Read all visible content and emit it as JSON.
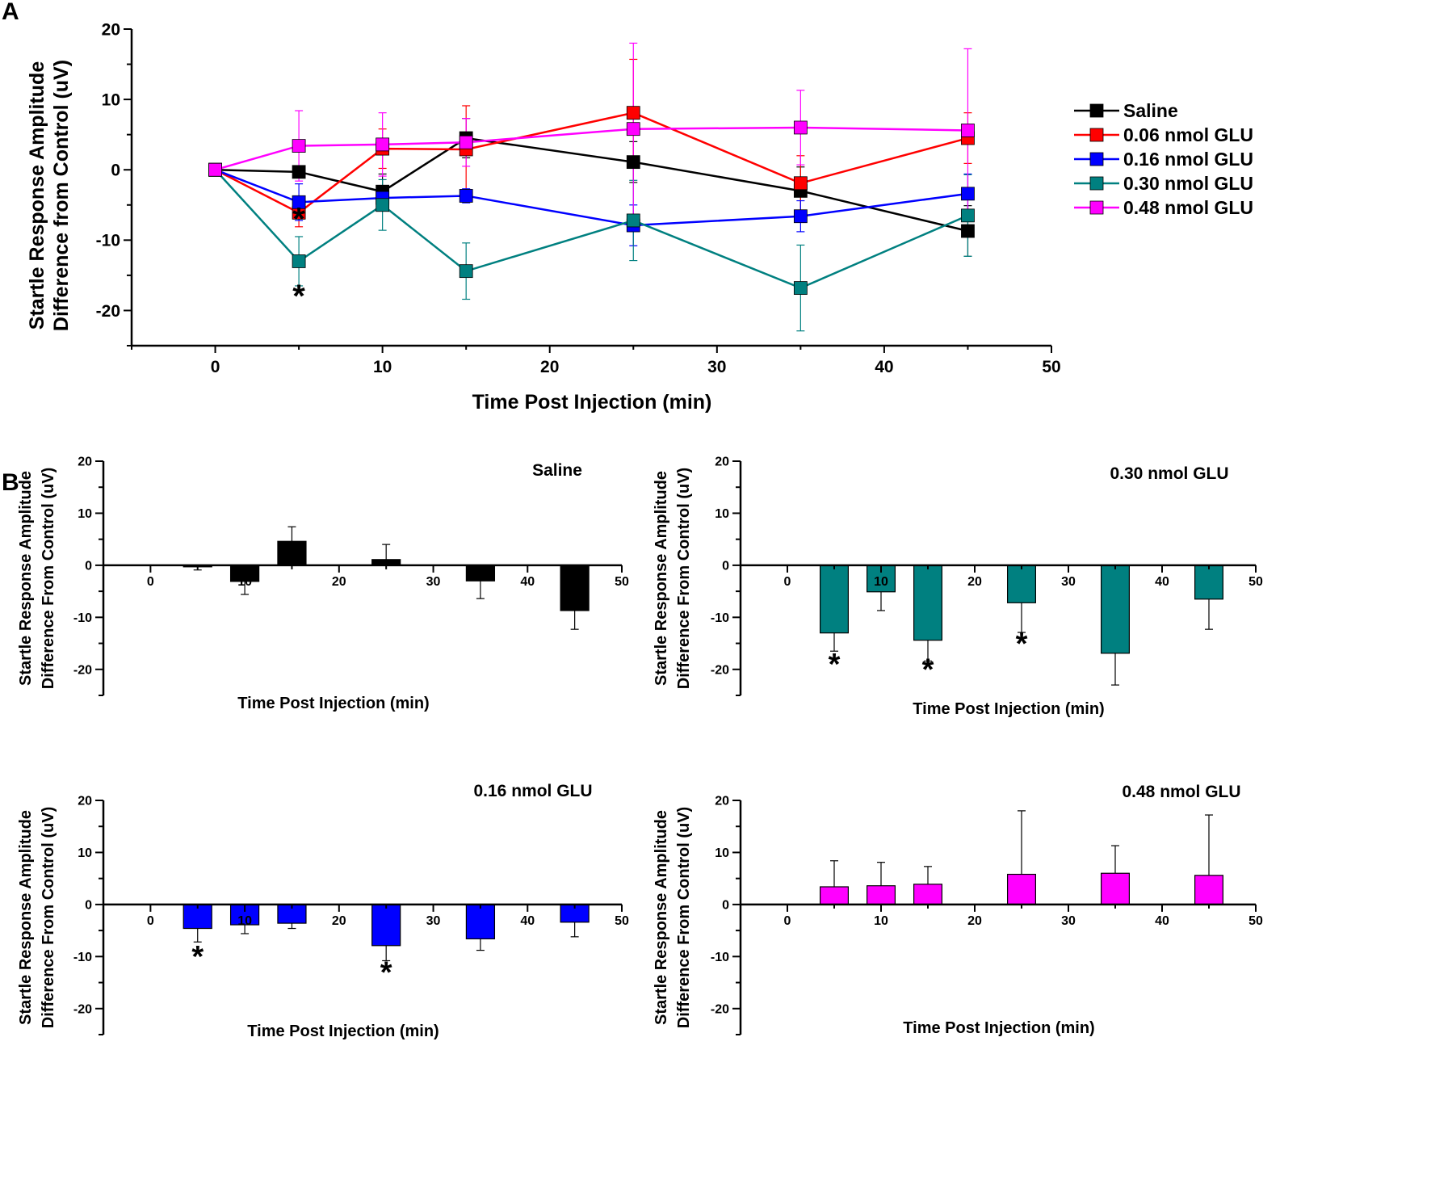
{
  "panel_labels": {
    "a": "A",
    "b": "B"
  },
  "chart_data": [
    {
      "id": "A",
      "type": "line",
      "xlabel": "Time Post Injection (min)",
      "ylabel": [
        "Startle Response Amplitude",
        "Difference from Control (uV)"
      ],
      "xlim": [
        -5,
        50
      ],
      "ylim": [
        -25,
        20
      ],
      "xticks": [
        0,
        10,
        20,
        30,
        40,
        50
      ],
      "yticks": [
        -20,
        -10,
        0,
        10,
        20
      ],
      "x": [
        0,
        5,
        10,
        15,
        25,
        35,
        45
      ],
      "legend_position": "right",
      "series": [
        {
          "name": "Saline",
          "color": "#000000",
          "values": [
            0,
            -0.3,
            -3.1,
            4.5,
            1.1,
            -3.0,
            -8.7
          ],
          "err": [
            0,
            0.6,
            2.5,
            2.8,
            2.9,
            3.4,
            3.6
          ]
        },
        {
          "name": "0.06 nmol GLU",
          "color": "#ff0000",
          "values": [
            0,
            -6.1,
            3.0,
            2.9,
            8.1,
            -1.9,
            4.5
          ],
          "err": [
            0,
            2.0,
            2.8,
            6.2,
            7.6,
            3.9,
            3.6
          ]
        },
        {
          "name": "0.16 nmol GLU",
          "color": "#0000ff",
          "values": [
            0,
            -4.6,
            -4.0,
            -3.7,
            -7.9,
            -6.6,
            -3.4
          ],
          "err": [
            0,
            2.6,
            1.7,
            1.0,
            2.9,
            2.2,
            2.8
          ]
        },
        {
          "name": "0.30 nmol GLU",
          "color": "#008080",
          "values": [
            0,
            -13.0,
            -5.0,
            -14.4,
            -7.2,
            -16.8,
            -6.5
          ],
          "err": [
            0,
            3.5,
            3.6,
            4.0,
            5.7,
            6.1,
            5.8
          ]
        },
        {
          "name": "0.48 nmol GLU",
          "color": "#ff00ff",
          "values": [
            0,
            3.4,
            3.6,
            3.9,
            5.8,
            6.0,
            5.6
          ],
          "err": [
            0,
            5.0,
            4.5,
            3.4,
            12.2,
            5.3,
            11.6
          ]
        }
      ],
      "annotations": [
        {
          "text": "*",
          "x": 5,
          "y": -8.5
        },
        {
          "text": "*",
          "x": 5,
          "y": -19.5
        }
      ]
    },
    {
      "id": "B-saline",
      "type": "bar",
      "title": "Saline",
      "color": "#000000",
      "xlabel": "Time Post Injection (min)",
      "ylabel": [
        "Startle Response Amplitude",
        "Difference From Control (uV)"
      ],
      "xlim": [
        -5,
        50
      ],
      "ylim": [
        -25,
        20
      ],
      "xticks": [
        0,
        10,
        20,
        30,
        40,
        50
      ],
      "yticks": [
        -20,
        -10,
        0,
        10,
        20
      ],
      "x": [
        5,
        10,
        15,
        25,
        35,
        45
      ],
      "values": [
        -0.3,
        -3.1,
        4.6,
        1.1,
        -3.0,
        -8.7
      ],
      "err": [
        0.6,
        2.5,
        2.8,
        2.9,
        3.4,
        3.6
      ],
      "annotations": []
    },
    {
      "id": "B-030",
      "type": "bar",
      "title": "0.30 nmol GLU",
      "color": "#008080",
      "xlabel": "Time Post Injection (min)",
      "ylabel": [
        "Startle Response Amplitude",
        "Difference From Control (uV)"
      ],
      "xlim": [
        -5,
        50
      ],
      "ylim": [
        -25,
        20
      ],
      "xticks": [
        0,
        10,
        20,
        30,
        40,
        50
      ],
      "yticks": [
        -20,
        -10,
        0,
        10,
        20
      ],
      "x": [
        5,
        10,
        15,
        25,
        35,
        45
      ],
      "values": [
        -13.0,
        -5.1,
        -14.4,
        -7.2,
        -16.9,
        -6.5
      ],
      "err": [
        3.5,
        3.6,
        4.0,
        5.7,
        6.1,
        5.8
      ],
      "annotations": [
        {
          "text": "*",
          "x": 5,
          "y": -21
        },
        {
          "text": "*",
          "x": 15,
          "y": -22
        },
        {
          "text": "*",
          "x": 25,
          "y": -17
        }
      ]
    },
    {
      "id": "B-016",
      "type": "bar",
      "title": "0.16 nmol GLU",
      "color": "#0000ff",
      "xlabel": "Time Post Injection (min)",
      "ylabel": [
        "Startle Response Amplitude",
        "Difference From Control (uV)"
      ],
      "xlim": [
        -5,
        50
      ],
      "ylim": [
        -25,
        20
      ],
      "xticks": [
        0,
        10,
        20,
        30,
        40,
        50
      ],
      "yticks": [
        -20,
        -10,
        0,
        10,
        20
      ],
      "x": [
        5,
        10,
        15,
        25,
        35,
        45
      ],
      "values": [
        -4.6,
        -3.9,
        -3.6,
        -7.9,
        -6.6,
        -3.4
      ],
      "err": [
        2.6,
        1.7,
        1.0,
        2.9,
        2.2,
        2.8
      ],
      "annotations": [
        {
          "text": "*",
          "x": 5,
          "y": -12
        },
        {
          "text": "*",
          "x": 25,
          "y": -15
        }
      ]
    },
    {
      "id": "B-048",
      "type": "bar",
      "title": "0.48 nmol GLU",
      "color": "#ff00ff",
      "xlabel": "Time Post Injection (min)",
      "ylabel": [
        "Startle Response Amplitude",
        "Difference From Control (uV)"
      ],
      "xlim": [
        -5,
        50
      ],
      "ylim": [
        -25,
        20
      ],
      "xticks": [
        0,
        10,
        20,
        30,
        40,
        50
      ],
      "yticks": [
        -20,
        -10,
        0,
        10,
        20
      ],
      "x": [
        5,
        10,
        15,
        25,
        35,
        45
      ],
      "values": [
        3.4,
        3.6,
        3.9,
        5.8,
        6.0,
        5.6
      ],
      "err": [
        5.0,
        4.5,
        3.4,
        12.2,
        5.3,
        11.6
      ],
      "annotations": []
    }
  ]
}
